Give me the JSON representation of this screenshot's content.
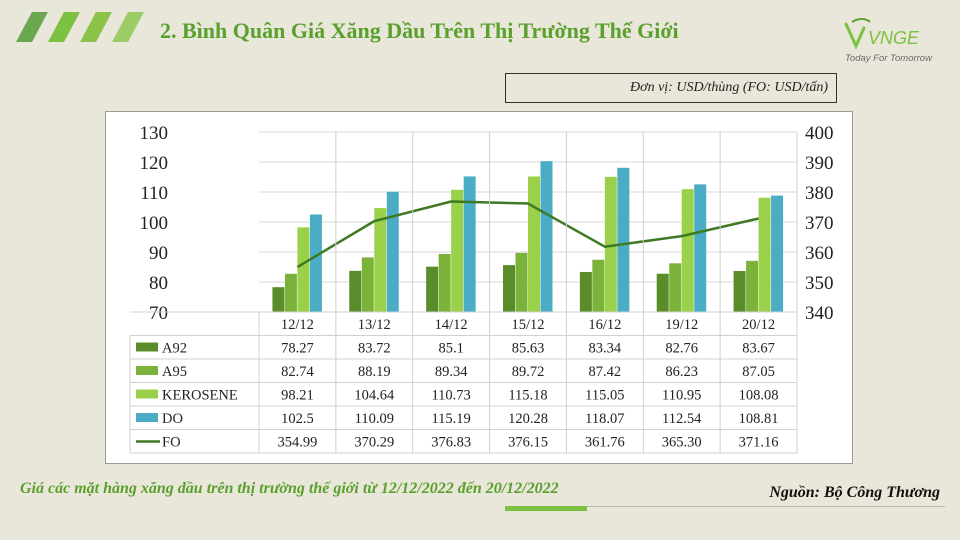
{
  "header": {
    "title": "2. Bình Quân Giá Xăng Dầu Trên Thị Trường Thế Giới",
    "logo_text": "VNGE",
    "logo_tagline": "Today For Tomorrow",
    "stripe_colors": [
      "#6aa84f",
      "#7cc242",
      "#8bc34a",
      "#9ccc65"
    ]
  },
  "unit_label": "Đơn vị: USD/thùng (FO: USD/tấn)",
  "chart_data": {
    "type": "bar",
    "categories": [
      "12/12",
      "13/12",
      "14/12",
      "15/12",
      "16/12",
      "19/12",
      "20/12"
    ],
    "y_left": {
      "min": 70,
      "max": 130,
      "ticks": [
        70,
        80,
        90,
        100,
        110,
        120,
        130
      ]
    },
    "y_right": {
      "min": 340,
      "max": 400,
      "ticks": [
        340,
        350,
        360,
        370,
        380,
        390,
        400
      ]
    },
    "series": [
      {
        "name": "A92",
        "kind": "bar",
        "axis": "left",
        "color": "#5b8c2a",
        "values": [
          78.27,
          83.72,
          85.1,
          85.63,
          83.34,
          82.76,
          83.67
        ],
        "labels": [
          "78.27",
          "83.72",
          "85.1",
          "85.63",
          "83.34",
          "82.76",
          "83.67"
        ]
      },
      {
        "name": "A95",
        "kind": "bar",
        "axis": "left",
        "color": "#7bb33a",
        "values": [
          82.74,
          88.19,
          89.34,
          89.72,
          87.42,
          86.23,
          87.05
        ],
        "labels": [
          "82.74",
          "88.19",
          "89.34",
          "89.72",
          "87.42",
          "86.23",
          "87.05"
        ]
      },
      {
        "name": "KEROSENE",
        "kind": "bar",
        "axis": "left",
        "color": "#9bd14a",
        "values": [
          98.21,
          104.64,
          110.73,
          115.18,
          115.05,
          110.95,
          108.08
        ],
        "labels": [
          "98.21",
          "104.64",
          "110.73",
          "115.18",
          "115.05",
          "110.95",
          "108.08"
        ]
      },
      {
        "name": "DO",
        "kind": "bar",
        "axis": "left",
        "color": "#4bacc6",
        "values": [
          102.5,
          110.09,
          115.19,
          120.28,
          118.07,
          112.54,
          108.81
        ],
        "labels": [
          "102.5",
          "110.09",
          "115.19",
          "120.28",
          "118.07",
          "112.54",
          "108.81"
        ]
      },
      {
        "name": "FO",
        "kind": "line",
        "axis": "right",
        "color": "#3f7a23",
        "values": [
          354.99,
          370.29,
          376.83,
          376.15,
          361.76,
          365.3,
          371.16
        ],
        "labels": [
          "354.99",
          "370.29",
          "376.83",
          "376.15",
          "361.76",
          "365.30",
          "371.16"
        ]
      }
    ],
    "grid": true,
    "legend": "data-table"
  },
  "caption": "Giá các mặt hàng xăng dầu trên thị trường thế giới từ 12/12/2022 đến 20/12/2022",
  "source": "Nguồn: Bộ Công Thương"
}
